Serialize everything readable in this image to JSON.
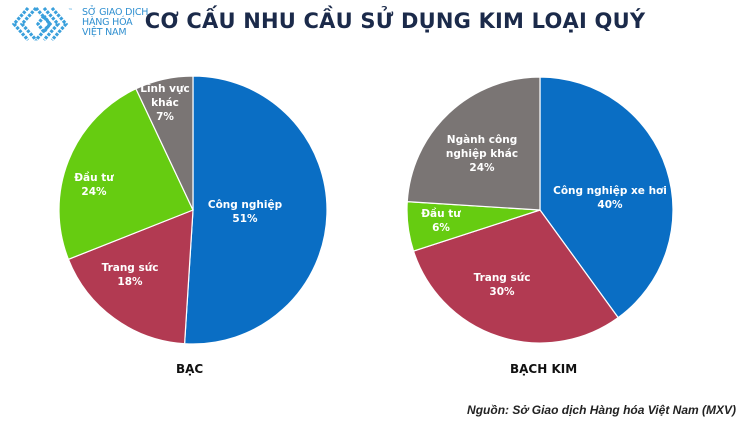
{
  "logo": {
    "icon": "mxv-diamond-logo-icon",
    "lines": [
      "SỞ GIAO DỊCH",
      "HÀNG HÓA",
      "VIỆT NAM"
    ],
    "trademark": "™"
  },
  "title": "CƠ CẤU NHU CẦU SỬ DỤNG KIM LOẠI QUÝ",
  "source": "Nguồn: Sở Giao dịch Hàng hóa Việt Nam (MXV)",
  "colors": {
    "blue": "#0a6ec4",
    "red": "#b23a52",
    "green": "#66cc11",
    "gray": "#7a7574",
    "title": "#1b2a4a"
  },
  "chart_data": [
    {
      "type": "pie",
      "title": "BẠC",
      "start_angle": "12 o'clock",
      "direction": "clockwise",
      "categories": [
        "Công nghiệp",
        "Trang sức",
        "Đầu tư",
        "Lĩnh vực khác"
      ],
      "values": [
        51,
        18,
        24,
        7
      ],
      "unit": "%",
      "colors": [
        "#0a6ec4",
        "#b23a52",
        "#66cc11",
        "#7a7574"
      ],
      "labels": [
        "Công nghiệp 51%",
        "Trang sức 18%",
        "Đầu tư 24%",
        "Lĩnh vực khác 7%"
      ],
      "legend": "none (data labels inside slices)"
    },
    {
      "type": "pie",
      "title": "BẠCH KIM",
      "start_angle": "12 o'clock",
      "direction": "clockwise",
      "categories": [
        "Công nghiệp xe hơi",
        "Trang sức",
        "Đầu tư",
        "Ngành công nghiệp khác"
      ],
      "values": [
        40,
        30,
        6,
        24
      ],
      "unit": "%",
      "colors": [
        "#0a6ec4",
        "#b23a52",
        "#66cc11",
        "#7a7574"
      ],
      "labels": [
        "Công nghiệp xe hơi 40%",
        "Trang sức 30%",
        "Đầu tư 6%",
        "Ngành công nghiệp khác 24%"
      ],
      "legend": "none (data labels inside slices)"
    }
  ],
  "pies": [
    {
      "caption": "BẠC",
      "slices": [
        {
          "lines": [
            "Công nghiệp",
            "51%"
          ]
        },
        {
          "lines": [
            "Trang sức",
            "18%"
          ]
        },
        {
          "lines": [
            "Đầu tư",
            "24%"
          ]
        },
        {
          "lines": [
            "Lĩnh vực",
            "khác",
            "7%"
          ]
        }
      ]
    },
    {
      "caption": "BẠCH KIM",
      "slices": [
        {
          "lines": [
            "Công nghiệp xe hơi",
            "40%"
          ]
        },
        {
          "lines": [
            "Trang sức",
            "30%"
          ]
        },
        {
          "lines": [
            "Đầu tư",
            "6%"
          ]
        },
        {
          "lines": [
            "Ngành công",
            "nghiệp khác",
            "24%"
          ]
        }
      ]
    }
  ]
}
